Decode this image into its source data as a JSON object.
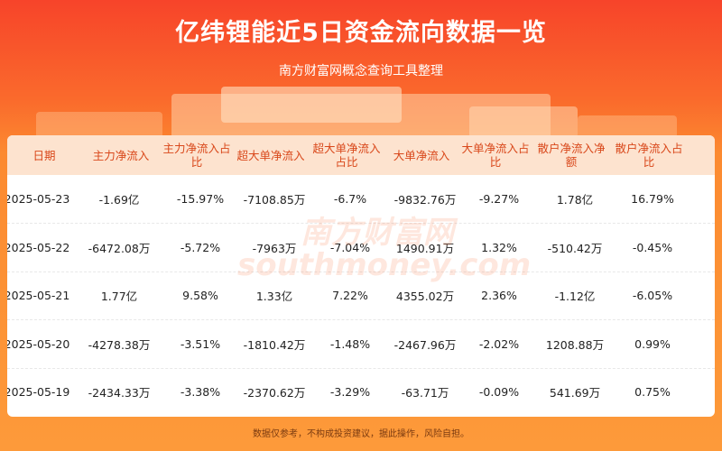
{
  "header": {
    "title": "亿纬锂能近5日资金流向数据一览",
    "subtitle": "南方财富网概念查询工具整理"
  },
  "table": {
    "columns": [
      "日期",
      "主力净流入",
      "主力净流入占比",
      "超大单净流入",
      "超大单净流入占比",
      "大单净流入",
      "大单净流入占比",
      "散户净流入净额",
      "散户净流入占比"
    ],
    "rows": [
      [
        "2025-05-23",
        "-1.69亿",
        "-15.97%",
        "-7108.85万",
        "-6.7%",
        "-9832.76万",
        "-9.27%",
        "1.78亿",
        "16.79%"
      ],
      [
        "2025-05-22",
        "-6472.08万",
        "-5.72%",
        "-7963万",
        "-7.04%",
        "1490.91万",
        "1.32%",
        "-510.42万",
        "-0.45%"
      ],
      [
        "2025-05-21",
        "1.77亿",
        "9.58%",
        "1.33亿",
        "7.22%",
        "4355.02万",
        "2.36%",
        "-1.12亿",
        "-6.05%"
      ],
      [
        "2025-05-20",
        "-4278.38万",
        "-3.51%",
        "-1810.42万",
        "-1.48%",
        "-2467.96万",
        "-2.02%",
        "1208.88万",
        "0.99%"
      ],
      [
        "2025-05-19",
        "-2434.33万",
        "-3.38%",
        "-2370.62万",
        "-3.29%",
        "-63.71万",
        "-0.09%",
        "541.69万",
        "0.75%"
      ]
    ]
  },
  "watermark": {
    "cn": "南方财富网",
    "en": "southmoney.com"
  },
  "footer": {
    "disclaimer": "数据仅参考，不构成投资建议，据此操作，风险自担。"
  },
  "colors": {
    "accent": "#d9481b",
    "header_bg": "#fde3cf",
    "banner": "#f7442a"
  }
}
